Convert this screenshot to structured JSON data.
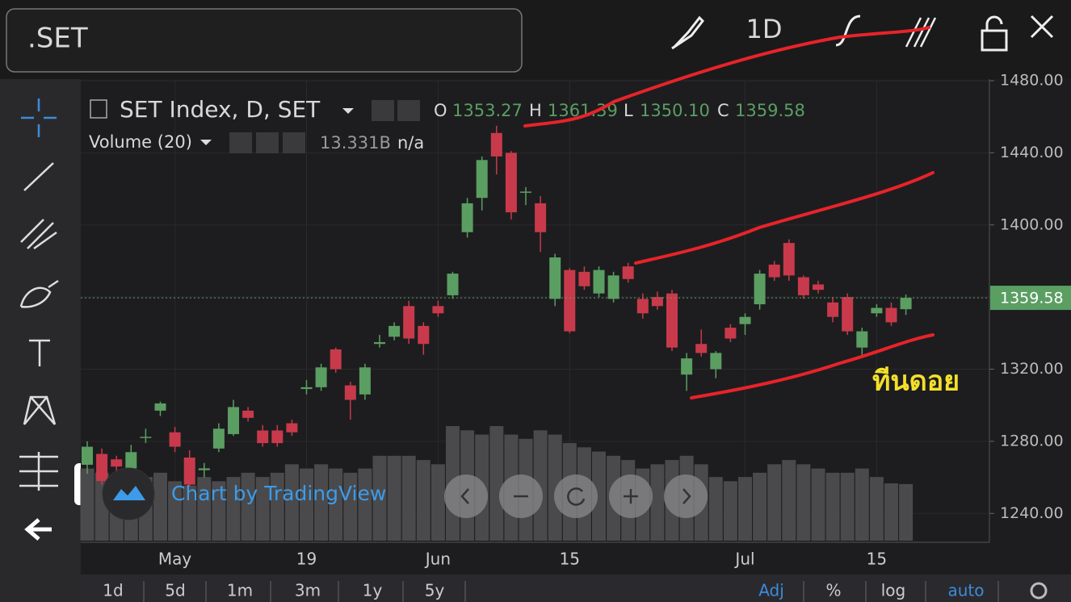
{
  "toolbar": {
    "symbol": ".SET",
    "interval": "1D"
  },
  "legend": {
    "title": "SET Index, D, SET",
    "o_label": "O",
    "o": "1353.27",
    "h_label": "H",
    "h": "1361.39",
    "l_label": "L",
    "l": "1350.10",
    "c_label": "C",
    "c": "1359.58",
    "volume_title": "Volume (20)",
    "volume_value": "13.331B",
    "volume_extra": "n/a"
  },
  "watermark": "Chart by TradingView",
  "annotation": "ทีนดอย",
  "bottom_bar": [
    "1d",
    "5d",
    "1m",
    "3m",
    "1y",
    "5y"
  ],
  "bottom_right": [
    "Adj",
    "%",
    "log",
    "auto"
  ],
  "chart_data": {
    "type": "candlestick",
    "categories": [
      null,
      null,
      null,
      null,
      null,
      null,
      "May",
      null,
      null,
      null,
      null,
      null,
      null,
      null,
      null,
      "19",
      null,
      null,
      null,
      null,
      null,
      null,
      null,
      null,
      "Jun",
      null,
      null,
      null,
      null,
      null,
      null,
      null,
      null,
      "15",
      null,
      null,
      null,
      null,
      null,
      null,
      null,
      null,
      null,
      null,
      null,
      "Jul",
      null,
      null,
      null,
      null,
      null,
      null,
      null,
      null,
      "15",
      null,
      null
    ],
    "open": [
      1267,
      1273,
      1270,
      1265,
      1282,
      1297,
      1285,
      1271,
      1264,
      1276,
      1284,
      1297,
      1286,
      1286,
      1290,
      1309,
      1310,
      1331,
      1311,
      1306,
      1334,
      1338,
      1355,
      1344,
      1355,
      1361,
      1396,
      1415,
      1451,
      1440,
      1418,
      1412,
      1359,
      1375,
      1374,
      1362,
      1359,
      1377,
      1359,
      1360,
      1362,
      1317,
      1334,
      1320,
      1343,
      1345,
      1356,
      1378,
      1390,
      1371,
      1367,
      1357,
      1360,
      1332,
      1351,
      1354,
      1353.27
    ],
    "high": [
      1280,
      1276,
      1272,
      1278,
      1287,
      1302,
      1288,
      1275,
      1268,
      1290,
      1303,
      1299,
      1289,
      1289,
      1292,
      1314,
      1323,
      1332,
      1313,
      1323,
      1339,
      1346,
      1358,
      1346,
      1358,
      1374,
      1415,
      1438,
      1455,
      1441,
      1421,
      1416,
      1384,
      1376,
      1377,
      1377,
      1374,
      1379,
      1362,
      1363,
      1364,
      1329,
      1342,
      1330,
      1345,
      1351,
      1375,
      1380,
      1392,
      1372,
      1369,
      1360,
      1362,
      1343,
      1356,
      1357,
      1361.39
    ],
    "low": [
      1262,
      1256,
      1263,
      1262,
      1279,
      1294,
      1274,
      1255,
      1260,
      1274,
      1283,
      1291,
      1277,
      1277,
      1283,
      1306,
      1308,
      1318,
      1292,
      1303,
      1332,
      1336,
      1334,
      1328,
      1349,
      1359,
      1393,
      1408,
      1428,
      1403,
      1411,
      1385,
      1355,
      1340,
      1364,
      1360,
      1357,
      1368,
      1348,
      1353,
      1330,
      1308,
      1327,
      1315,
      1335,
      1339,
      1353,
      1369,
      1369,
      1359,
      1362,
      1346,
      1339,
      1328,
      1349,
      1344,
      1350.1
    ],
    "close": [
      1277,
      1258,
      1266,
      1274,
      1282.5,
      1301,
      1277,
      1256,
      1265,
      1287,
      1299,
      1293,
      1279,
      1279,
      1285,
      1310,
      1321,
      1320,
      1303,
      1321,
      1335,
      1344,
      1337,
      1334,
      1351,
      1373,
      1412,
      1436,
      1438,
      1407,
      1418.5,
      1396,
      1382,
      1341,
      1366,
      1375,
      1372,
      1370,
      1351,
      1355,
      1332,
      1326,
      1329,
      1329,
      1337,
      1349,
      1373,
      1371,
      1372,
      1361,
      1364,
      1349,
      1341,
      1341,
      1354,
      1346,
      1359.58
    ],
    "volume": [
      17,
      16,
      15,
      14,
      15,
      16,
      14,
      13,
      15,
      14,
      15,
      16,
      15,
      16,
      18,
      17,
      18,
      17,
      16,
      17,
      20,
      20,
      20,
      19,
      18,
      27,
      26,
      25,
      27,
      25,
      24,
      26,
      25,
      23,
      22,
      21,
      20,
      19,
      17,
      18,
      19,
      20,
      18,
      15,
      14,
      15,
      16,
      18,
      19,
      18,
      17,
      16,
      16,
      17,
      15,
      13.5,
      13.331
    ],
    "up_color": "#5b9e62",
    "down_color": "#c83a4b",
    "volume_color": "#4a4a4c",
    "ylim": [
      1224,
      1480
    ],
    "yticks": [
      {
        "value": 1240,
        "label": "1240.00"
      },
      {
        "value": 1280,
        "label": "1280.00"
      },
      {
        "value": 1320,
        "label": "1320.00"
      },
      {
        "value": 1360,
        "label": "1360.00"
      },
      {
        "value": 1400,
        "label": "1400.00"
      },
      {
        "value": 1440,
        "label": "1440.00"
      },
      {
        "value": 1480,
        "label": "1480.00"
      }
    ],
    "last_price_label": "1359.58",
    "grid": true
  }
}
